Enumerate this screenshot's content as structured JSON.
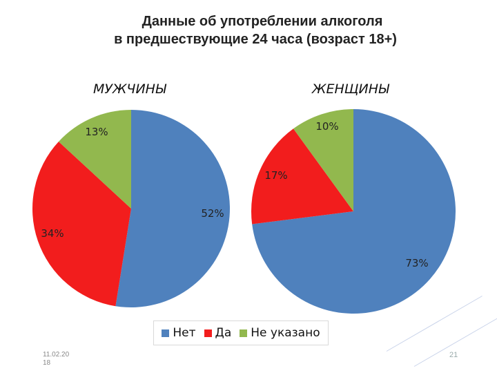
{
  "slide": {
    "title_line1": "Данные об употреблении алкоголя",
    "title_line2": "в предшествующие 24 часа (возраст 18+)",
    "date": "11.02.20 18",
    "page_number": "21"
  },
  "legend": [
    {
      "label": "Нет",
      "color": "#4f81bd"
    },
    {
      "label": "Да",
      "color": "#f21d1d"
    },
    {
      "label": "Не указано",
      "color": "#92b84e"
    }
  ],
  "chart_data": [
    {
      "type": "pie",
      "title": "МУЖЧИНЫ",
      "categories": [
        "Нет",
        "Да",
        "Не указано"
      ],
      "values": [
        52,
        34,
        13
      ],
      "labels": [
        "52%",
        "34%",
        "13%"
      ]
    },
    {
      "type": "pie",
      "title": "ЖЕНЩИНЫ",
      "categories": [
        "Нет",
        "Да",
        "Не указано"
      ],
      "values": [
        73,
        17,
        10
      ],
      "labels": [
        "73%",
        "17%",
        "10%"
      ]
    }
  ]
}
